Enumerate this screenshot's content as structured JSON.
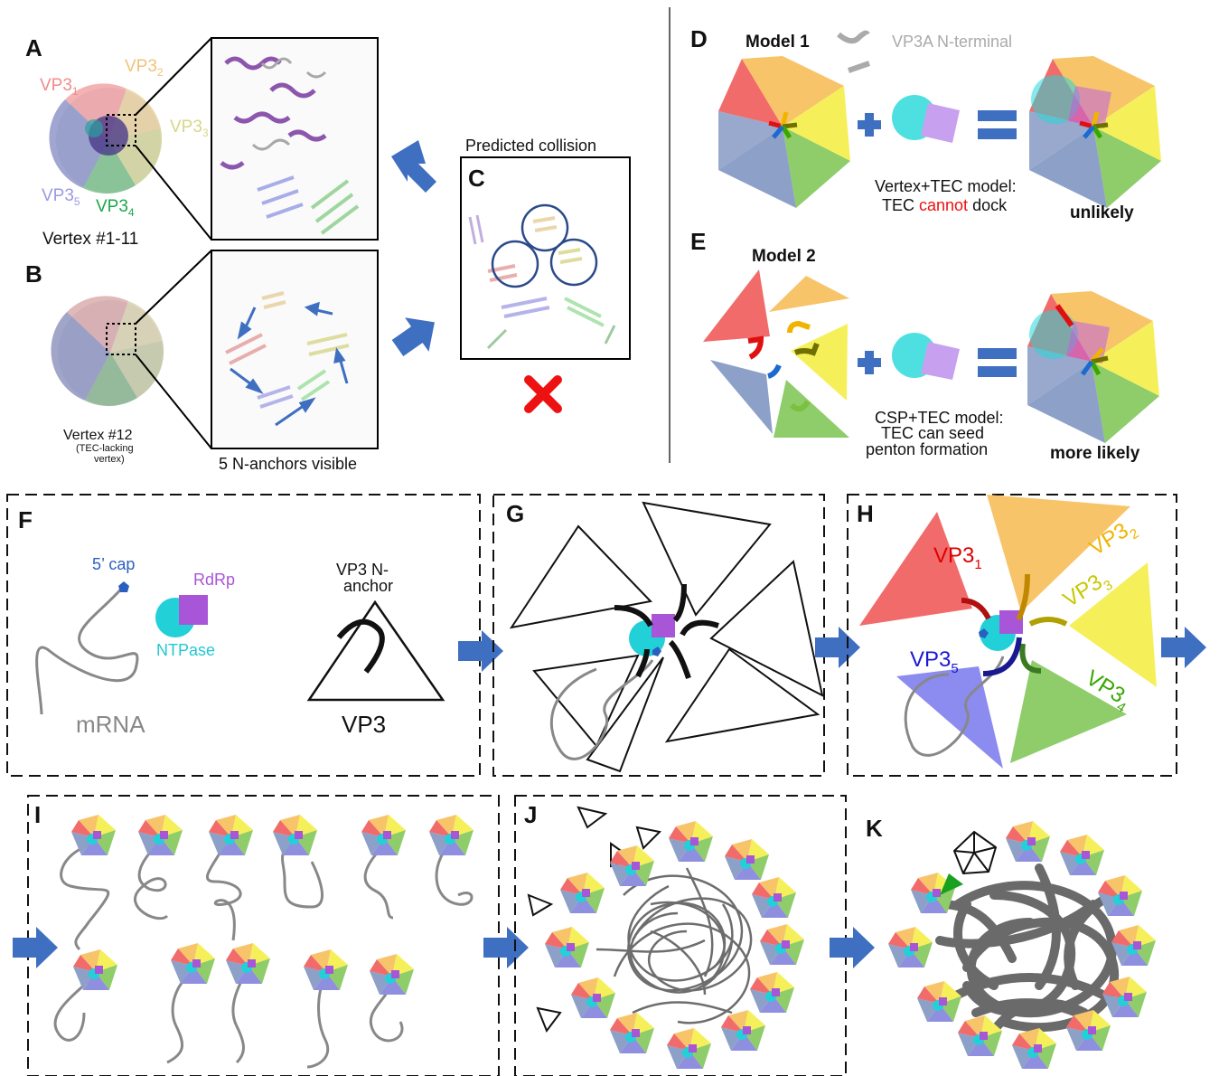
{
  "panels": {
    "A": {
      "letter": "A",
      "caption": "Vertex #1-11",
      "vp": [
        {
          "base": "VP3",
          "sub": "1",
          "color": "#f08c8c"
        },
        {
          "base": "VP3",
          "sub": "2",
          "color": "#f0c27a"
        },
        {
          "base": "VP3",
          "sub": "3",
          "color": "#d6d68a"
        },
        {
          "base": "VP3",
          "sub": "4",
          "color": "#1aa84a"
        },
        {
          "base": "VP3",
          "sub": "5",
          "color": "#9a9ae6"
        }
      ]
    },
    "B": {
      "letter": "B",
      "caption": "Vertex #12",
      "caption_sub1": "(TEC-lacking",
      "caption_sub2": "vertex)",
      "zoom_caption": "5 N-anchors visible"
    },
    "C": {
      "letter": "C",
      "title": "Predicted collision"
    },
    "D": {
      "letter": "D",
      "model": "Model 1",
      "legend": "VP3A N-terminal",
      "text1": "Vertex+TEC model:",
      "text2_a": "TEC ",
      "text2_b": "cannot",
      "text2_c": " dock",
      "verdict": "unlikely"
    },
    "E": {
      "letter": "E",
      "model": "Model 2",
      "text1": "CSP+TEC model:",
      "text2": "TEC can seed",
      "text3": "penton formation",
      "verdict": "more likely"
    },
    "F": {
      "letter": "F",
      "cap": "5’ cap",
      "rdrp": "RdRp",
      "ntpase": "NTPase",
      "mrna": "mRNA",
      "anchor1": "VP3 N-",
      "anchor2": "anchor",
      "vp3": "VP3"
    },
    "G": {
      "letter": "G"
    },
    "H": {
      "letter": "H",
      "vp": [
        {
          "base": "VP3",
          "sub": "1",
          "color": "#e00000"
        },
        {
          "base": "VP3",
          "sub": "2",
          "color": "#f0b400"
        },
        {
          "base": "VP3",
          "sub": "3",
          "color": "#c8c800"
        },
        {
          "base": "VP3",
          "sub": "4",
          "color": "#38a800"
        },
        {
          "base": "VP3",
          "sub": "5",
          "color": "#1a1ad0"
        }
      ]
    },
    "I": {
      "letter": "I"
    },
    "J": {
      "letter": "J"
    },
    "K": {
      "letter": "K"
    }
  },
  "colors": {
    "red": "#f26b6b",
    "orange": "#f7c46a",
    "yellow": "#f5f05a",
    "green": "#8fcc6a",
    "blue": "#8da0c8",
    "arrow": "#3f6fc0",
    "cyan": "#22d0d8",
    "purple": "#a855d8",
    "cross": "#ee1111"
  }
}
